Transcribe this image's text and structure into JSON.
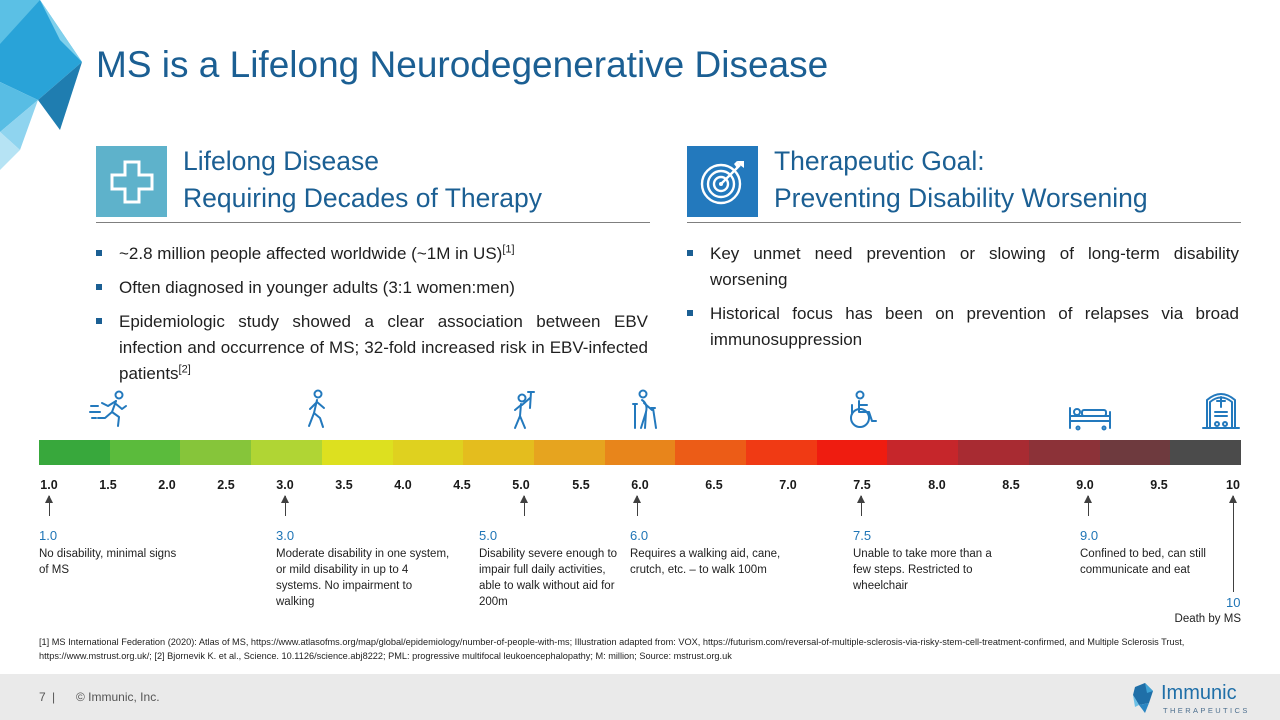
{
  "slide": {
    "title": "MS is a Lifelong Neurodegenerative Disease"
  },
  "left_section": {
    "icon": "medical-cross-icon",
    "heading_line1": "Lifelong Disease",
    "heading_line2": "Requiring Decades of Therapy",
    "bullets": [
      {
        "text": "~2.8 million people affected worldwide (~1M in US)",
        "ref": "[1]"
      },
      {
        "text": "Often diagnosed in younger adults (3:1 women:men)"
      },
      {
        "text": "Epidemiologic study showed a clear association between EBV infection and occurrence of MS; 32-fold increased risk in EBV-infected patients",
        "ref": "[2]"
      }
    ]
  },
  "right_section": {
    "icon": "target-icon",
    "heading_line1": "Therapeutic Goal:",
    "heading_line2": "Preventing Disability Worsening",
    "bullets": [
      {
        "text": "Key unmet need prevention or slowing of long-term disability worsening"
      },
      {
        "text": "Historical focus has been on prevention of relapses via broad immunosuppression"
      }
    ]
  },
  "scale": {
    "stage_icons": [
      "running-person-icon",
      "walking-person-icon",
      "person-with-crutch-icon",
      "person-with-cane-icon",
      "wheelchair-icon",
      "bed-icon",
      "gravestone-icon"
    ],
    "segment_colors": [
      "#38a83c",
      "#5bbb3c",
      "#86c53a",
      "#b0d534",
      "#dde01f",
      "#dfd11f",
      "#e4bd1e",
      "#e6a41f",
      "#e8851b",
      "#ec5c17",
      "#f03a14",
      "#ef1c10",
      "#c6262b",
      "#a82b32",
      "#8c3238",
      "#6e3a3e",
      "#4b4b4b"
    ],
    "ticks": [
      "1.0",
      "1.5",
      "2.0",
      "2.5",
      "3.0",
      "3.5",
      "4.0",
      "4.5",
      "5.0",
      "5.5",
      "6.0",
      "6.5",
      "7.0",
      "7.5",
      "8.0",
      "8.5",
      "9.0",
      "9.5",
      "10"
    ],
    "descriptions": [
      {
        "score": "1.0",
        "text": "No disability, minimal signs of MS"
      },
      {
        "score": "3.0",
        "text": "Moderate disability in one system, or mild disability in up to 4 systems. No impairment to walking"
      },
      {
        "score": "5.0",
        "text": "Disability severe enough to impair full daily activities, able to walk without aid for 200m"
      },
      {
        "score": "6.0",
        "text": "Requires a walking aid, cane, crutch, etc. – to walk 100m"
      },
      {
        "score": "7.5",
        "text": "Unable to take more than a few steps. Restricted to wheelchair"
      },
      {
        "score": "9.0",
        "text": "Confined to bed, can still communicate and eat"
      }
    ],
    "death": {
      "score": "10",
      "text": "Death by MS"
    }
  },
  "footnote": "[1] MS International Federation (2020): Atlas of MS, https://www.atlasofms.org/map/global/epidemiology/number-of-people-with-ms; Illustration adapted from: VOX, https://futurism.com/reversal-of-multiple-sclerosis-via-risky-stem-cell-treatment-confirmed, and Multiple Sclerosis Trust, https://www.mstrust.org.uk/; [2] Bjornevik K. et al., Science. 10.1126/science.abj8222; PML: progressive multifocal leukoencephalopathy; M: million; Source: mstrust.org.uk",
  "footer": {
    "page_number": "7",
    "separator": "|",
    "copyright": "© Immunic, Inc.",
    "logo_name": "Immunic",
    "logo_sub": "THERAPEUTICS"
  },
  "colors": {
    "brand_blue": "#1b5f93",
    "icon_teal": "#5eb2cb",
    "icon_blue": "#2379bd"
  }
}
